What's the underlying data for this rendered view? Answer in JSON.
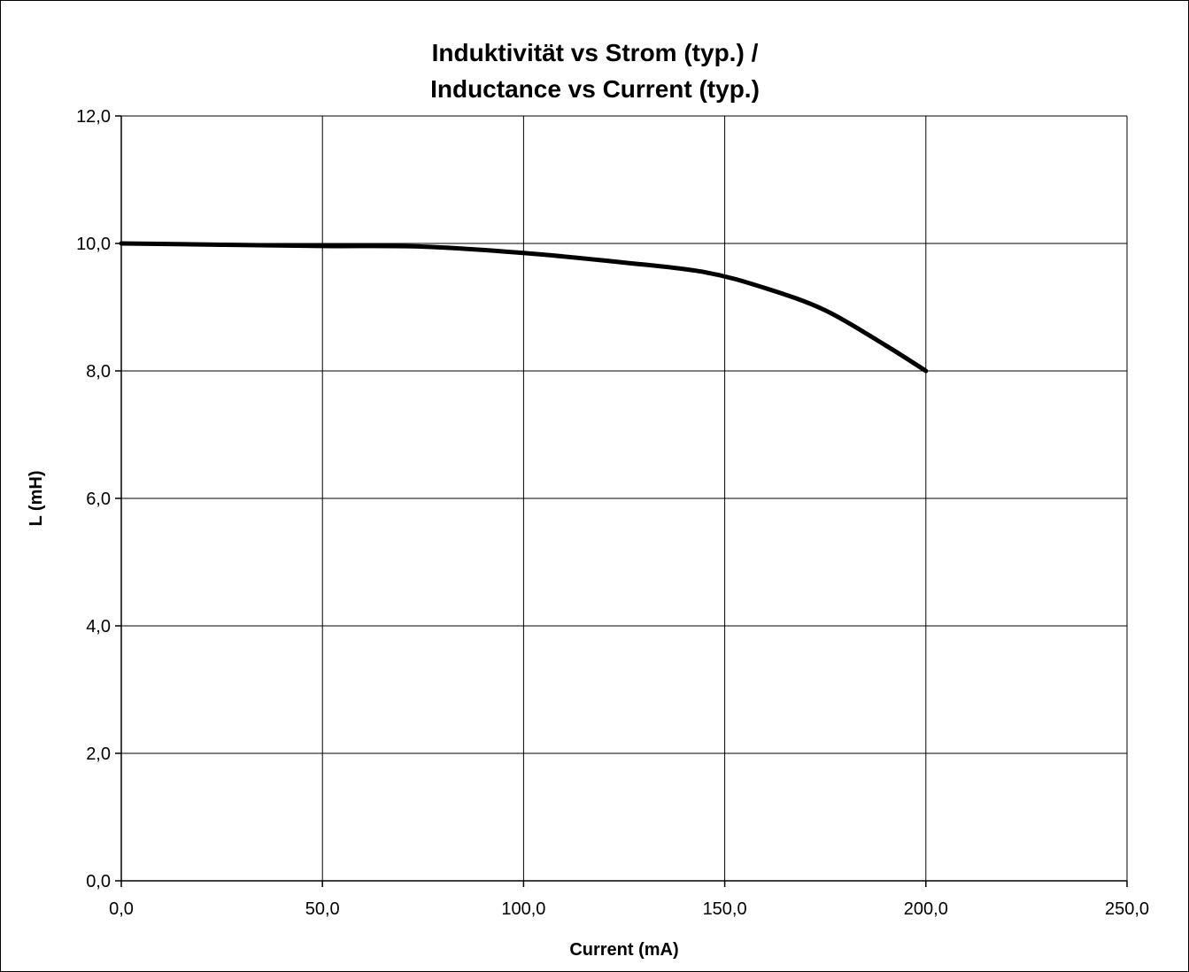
{
  "chart_data": {
    "type": "line",
    "title_lines": [
      "Induktivität vs Strom (typ.) /",
      "Inductance vs Current (typ.)"
    ],
    "xlabel": "Current (mA)",
    "ylabel": "L (mH)",
    "xlim": [
      0,
      250
    ],
    "ylim": [
      0,
      12
    ],
    "x_ticks": [
      0,
      50,
      100,
      150,
      200,
      250
    ],
    "y_ticks": [
      0,
      2,
      4,
      6,
      8,
      10,
      12
    ],
    "x_tick_labels": [
      "0,0",
      "50,0",
      "100,0",
      "150,0",
      "200,0",
      "250,0"
    ],
    "y_tick_labels": [
      "0,0",
      "2,0",
      "4,0",
      "6,0",
      "8,0",
      "10,0",
      "12,0"
    ],
    "grid": true,
    "legend": "none",
    "series": [
      {
        "color": "#000000",
        "x": [
          0,
          25,
          50,
          75,
          100,
          125,
          145,
          160,
          175,
          190,
          200
        ],
        "y": [
          10.0,
          9.98,
          9.96,
          9.95,
          9.85,
          9.7,
          9.55,
          9.3,
          8.95,
          8.4,
          8.0
        ]
      }
    ]
  }
}
